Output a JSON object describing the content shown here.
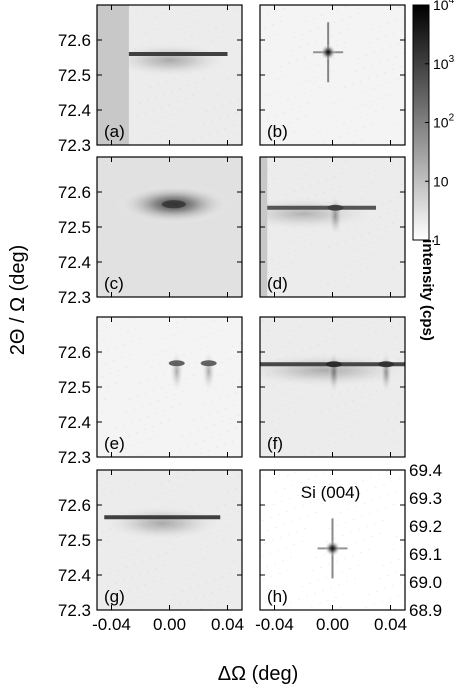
{
  "chart_data": {
    "type": "heatmap",
    "layout": "4 rows x 2 columns of reciprocal space maps",
    "xlabel": "ΔΩ (deg)",
    "ylabel": "2Θ / Ω (deg)",
    "xlim": [
      -0.05,
      0.05
    ],
    "x_ticks": [
      "-0.04",
      "0.00",
      "0.04"
    ],
    "x_tick_values": [
      -0.04,
      0.0,
      0.04
    ],
    "ylim": [
      72.3,
      72.7
    ],
    "y_ticks": [
      "72.3",
      "72.4",
      "72.5",
      "72.6"
    ],
    "y_tick_values": [
      72.3,
      72.4,
      72.5,
      72.6
    ],
    "colorbar": {
      "title": "intensity (cps)",
      "scale": "log",
      "range": [
        1,
        10000
      ],
      "ticks": [
        {
          "value": 10000,
          "base": "10",
          "exp": "4"
        },
        {
          "value": 1000,
          "base": "10",
          "exp": "3"
        },
        {
          "value": 100,
          "base": "10",
          "exp": "2"
        },
        {
          "value": 10,
          "base": "10",
          "exp": ""
        },
        {
          "value": 1,
          "base": "1",
          "exp": ""
        }
      ]
    },
    "panels": [
      {
        "label": "(a)",
        "row": 0,
        "col": 0,
        "peaks": [
          {
            "x": 0.0,
            "y": 72.56,
            "wx": 0.04,
            "wy": 0.005,
            "peak": 2000,
            "kind": "streak"
          }
        ],
        "masked_left_until": -0.028,
        "background": 2
      },
      {
        "label": "(b)",
        "row": 0,
        "col": 1,
        "peaks": [
          {
            "x": -0.003,
            "y": 72.565,
            "wx": 0.002,
            "wy": 0.004,
            "peak": 9000,
            "kind": "cross"
          }
        ],
        "background": 1.5
      },
      {
        "label": "(c)",
        "row": 1,
        "col": 0,
        "peaks": [
          {
            "x": 0.003,
            "y": 72.565,
            "wx": 0.04,
            "wy": 0.02,
            "peak": 1500,
            "kind": "diffuse"
          }
        ],
        "background": 3
      },
      {
        "label": "(d)",
        "row": 1,
        "col": 1,
        "peaks": [
          {
            "x": -0.02,
            "y": 72.555,
            "wx": 0.05,
            "wy": 0.003,
            "peak": 800,
            "kind": "streak"
          },
          {
            "x": 0.002,
            "y": 72.555,
            "wx": 0.005,
            "wy": 0.006,
            "peak": 1200,
            "kind": "blob"
          }
        ],
        "masked_left_until": -0.045,
        "background": 2
      },
      {
        "label": "(e)",
        "row": 2,
        "col": 0,
        "peaks": [
          {
            "x": 0.005,
            "y": 72.568,
            "wx": 0.005,
            "wy": 0.004,
            "peak": 500,
            "kind": "blob"
          },
          {
            "x": 0.027,
            "y": 72.568,
            "wx": 0.005,
            "wy": 0.004,
            "peak": 500,
            "kind": "blob"
          }
        ],
        "background": 1.5
      },
      {
        "label": "(f)",
        "row": 2,
        "col": 1,
        "peaks": [
          {
            "x": -0.005,
            "y": 72.565,
            "wx": 0.06,
            "wy": 0.004,
            "peak": 1500,
            "kind": "streak"
          },
          {
            "x": 0.001,
            "y": 72.565,
            "wx": 0.004,
            "wy": 0.005,
            "peak": 2500,
            "kind": "blob"
          },
          {
            "x": 0.037,
            "y": 72.565,
            "wx": 0.004,
            "wy": 0.005,
            "peak": 2000,
            "kind": "blob"
          }
        ],
        "background": 2
      },
      {
        "label": "(g)",
        "row": 3,
        "col": 0,
        "peaks": [
          {
            "x": -0.005,
            "y": 72.565,
            "wx": 0.04,
            "wy": 0.004,
            "peak": 2000,
            "kind": "streak"
          }
        ],
        "background": 2
      },
      {
        "label": "(h)",
        "row": 3,
        "col": 1,
        "annotation": "Si (004)",
        "right_axis": {
          "ylim": [
            68.9,
            69.4
          ],
          "ticks": [
            "68.9",
            "69.0",
            "69.1",
            "69.2",
            "69.3",
            "69.4"
          ],
          "tick_values": [
            68.9,
            69.0,
            69.1,
            69.2,
            69.3,
            69.4
          ]
        },
        "peaks": [
          {
            "x": 0.0,
            "y": 69.12,
            "wx": 0.0015,
            "wy": 0.006,
            "peak": 9000,
            "kind": "cross"
          }
        ],
        "background": 1
      }
    ]
  }
}
